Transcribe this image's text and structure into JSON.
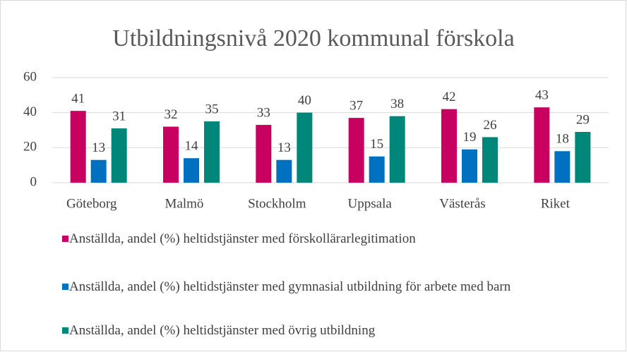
{
  "chart_data": {
    "type": "bar",
    "title": "Utbildningsnivå 2020 kommunal förskola",
    "categories": [
      "Göteborg",
      "Malmö",
      "Stockholm",
      "Uppsala",
      "Västerås",
      "Riket"
    ],
    "series": [
      {
        "name": "Anställda, andel (%) heltidstjänster med förskollärarlegitimation",
        "color": "#c8005f",
        "values": [
          41,
          32,
          33,
          37,
          42,
          43
        ]
      },
      {
        "name": "Anställda, andel (%) heltidstjänster med gymnasial utbildning för arbete med barn",
        "color": "#0070c0",
        "values": [
          13,
          14,
          13,
          15,
          19,
          18
        ]
      },
      {
        "name": "Anställda, andel (%) heltidstjänster med övrig utbildning",
        "color": "#00877a",
        "values": [
          31,
          35,
          40,
          38,
          26,
          29
        ]
      }
    ],
    "ylim": [
      0,
      60
    ],
    "yticks": [
      0,
      20,
      40,
      60
    ],
    "grid": true,
    "legend": "bottom"
  }
}
